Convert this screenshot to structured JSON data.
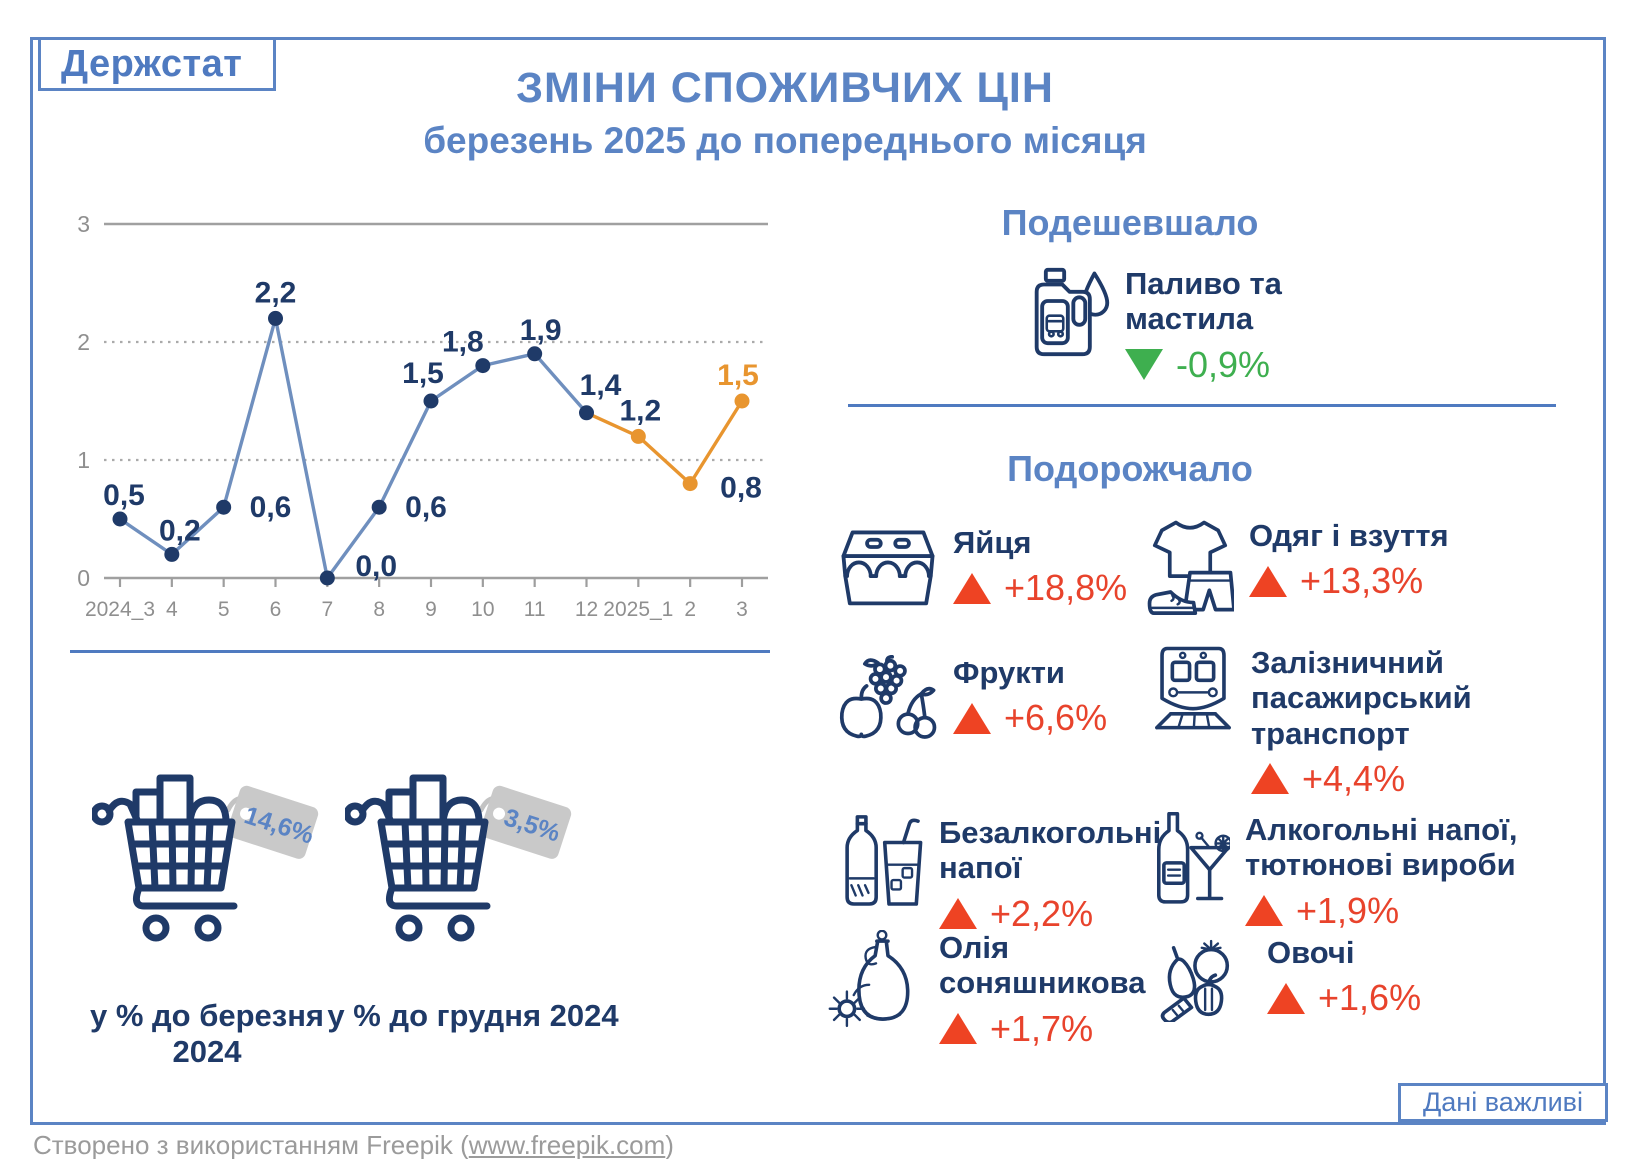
{
  "header": {
    "logo": "Держстат",
    "title": "ЗМІНИ СПОЖИВЧИХ ЦІН",
    "subtitle": "березень 2025 до попереднього місяця"
  },
  "chart_data": {
    "type": "line",
    "title": "ЗМІНИ СПОЖИВЧИХ ЦІН, березень 2025 до попереднього місяця",
    "categories": [
      "2024_3",
      "4",
      "5",
      "6",
      "7",
      "8",
      "9",
      "10",
      "11",
      "12",
      "2025_1",
      "2",
      "3"
    ],
    "values": [
      0.5,
      0.2,
      0.6,
      2.2,
      0.0,
      0.6,
      1.5,
      1.8,
      1.9,
      1.4,
      1.2,
      0.8,
      1.5
    ],
    "labels": [
      "0,5",
      "0,2",
      "0,6",
      "2,2",
      "0,0",
      "0,6",
      "1,5",
      "1,8",
      "1,9",
      "1,4",
      "1,2",
      "0,8",
      "1,5"
    ],
    "ylim": [
      0,
      3
    ],
    "yticks": [
      3,
      2,
      1,
      0
    ],
    "grid": {
      "solid_at": [
        3,
        0
      ],
      "dotted_at": [
        2,
        1
      ]
    },
    "legend": "none",
    "recent_start_index": 9,
    "series_colors": {
      "past": "#6f8fbe",
      "recent": "#e8952f"
    },
    "point_colors": {
      "past": "#1f3a68",
      "recent": "#e8952f"
    }
  },
  "cheaper": {
    "title": "Подешевшало",
    "item": {
      "label": "Паливо та\nмастила",
      "value": "-0,9%",
      "icon": "fuel-canister"
    }
  },
  "pricier": {
    "title": "Подорожчало",
    "items": [
      {
        "label": "Яйця",
        "value": "+18,8%",
        "icon": "eggs"
      },
      {
        "label": "Одяг і взуття",
        "value": "+13,3%",
        "icon": "clothing"
      },
      {
        "label": "Фрукти",
        "value": "+6,6%",
        "icon": "fruits"
      },
      {
        "label": "Залізничний\nпасажирський\nтранспорт",
        "value": "+4,4%",
        "icon": "train"
      },
      {
        "label": "Безалкогольні\nнапої",
        "value": "+2,2%",
        "icon": "soft-drinks"
      },
      {
        "label": "Алкогольні напої,\nтютюнові вироби",
        "value": "+1,9%",
        "icon": "alcohol-tobacco"
      },
      {
        "label": "Олія\nсоняшникова",
        "value": "+1,7%",
        "icon": "sunflower-oil"
      },
      {
        "label": "Овочі",
        "value": "+1,6%",
        "icon": "vegetables"
      }
    ]
  },
  "summary": {
    "carts": [
      {
        "tag": "14,6%",
        "caption": "у % до березня 2024"
      },
      {
        "tag": "3,5%",
        "caption": "у % до грудня 2024"
      }
    ]
  },
  "badge": {
    "label": "Дані важливі"
  },
  "credit": {
    "prefix": "Створено з використанням Freepik (",
    "link": "www.freepik.com",
    "suffix": ")"
  },
  "colors": {
    "accent_blue": "#5b84c4",
    "navy": "#1f3a68",
    "line_blue": "#6f8fbe",
    "orange": "#e8952f",
    "red": "#ee4323",
    "green": "#3eaf4f",
    "axis_gray": "#8f8f8f",
    "tag_gray": "#c9c9c9"
  }
}
